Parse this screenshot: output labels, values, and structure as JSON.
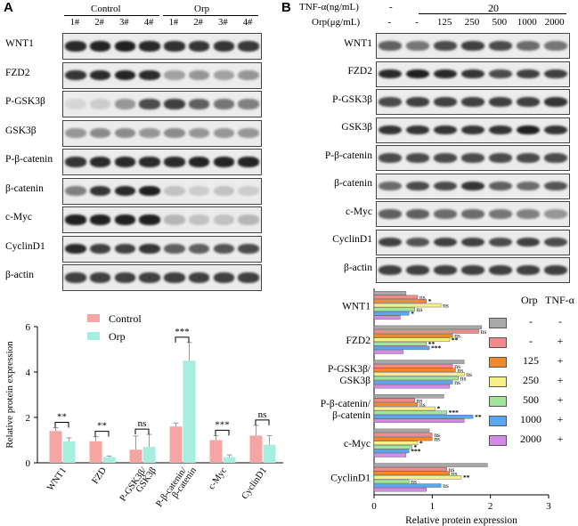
{
  "panel_a": {
    "letter": "A",
    "group_labels": [
      "Control",
      "Orp"
    ],
    "lanes": [
      "1#",
      "2#",
      "3#",
      "4#",
      "1#",
      "2#",
      "3#",
      "4#"
    ],
    "blots": [
      {
        "label": "WNT1",
        "intensity": [
          0.85,
          0.88,
          0.9,
          0.86,
          0.82,
          0.8,
          0.8,
          0.78
        ]
      },
      {
        "label": "FZD2",
        "intensity": [
          0.8,
          0.85,
          0.88,
          0.85,
          0.3,
          0.35,
          0.3,
          0.35
        ]
      },
      {
        "label": "P-GSK3β",
        "intensity": [
          0.05,
          0.1,
          0.35,
          0.7,
          0.75,
          0.6,
          0.5,
          0.45
        ]
      },
      {
        "label": "GSK3β",
        "intensity": [
          0.35,
          0.4,
          0.4,
          0.35,
          0.4,
          0.35,
          0.35,
          0.35
        ]
      },
      {
        "label": "P-β-catenin",
        "intensity": [
          0.8,
          0.85,
          0.85,
          0.85,
          0.85,
          0.88,
          0.88,
          0.88
        ]
      },
      {
        "label": "β-catenin",
        "intensity": [
          0.45,
          0.8,
          0.85,
          0.9,
          0.15,
          0.1,
          0.15,
          0.1
        ]
      },
      {
        "label": "c-Myc",
        "intensity": [
          0.9,
          0.9,
          0.9,
          0.9,
          0.2,
          0.15,
          0.15,
          0.2
        ]
      },
      {
        "label": "CyclinD1",
        "intensity": [
          0.85,
          0.75,
          0.75,
          0.8,
          0.6,
          0.6,
          0.65,
          0.7
        ]
      },
      {
        "label": "β-actin",
        "intensity": [
          0.75,
          0.75,
          0.75,
          0.75,
          0.75,
          0.75,
          0.75,
          0.75
        ]
      }
    ]
  },
  "panel_b": {
    "letter": "B",
    "tnf_label": "TNF-α(ng/mL)",
    "tnf_dash": "-",
    "tnf_value": "20",
    "orp_label": "Orp(μg/mL)",
    "orp_values": [
      "-",
      "-",
      "125",
      "250",
      "500",
      "1000",
      "2000"
    ],
    "blots": [
      {
        "label": "WNT1",
        "intensity": [
          0.6,
          0.5,
          0.7,
          0.75,
          0.7,
          0.55,
          0.5
        ]
      },
      {
        "label": "FZD2",
        "intensity": [
          0.85,
          0.9,
          0.85,
          0.8,
          0.7,
          0.75,
          0.75
        ]
      },
      {
        "label": "P-GSK3β",
        "intensity": [
          0.7,
          0.75,
          0.75,
          0.75,
          0.75,
          0.75,
          0.8
        ]
      },
      {
        "label": "GSK3β",
        "intensity": [
          0.8,
          0.8,
          0.8,
          0.8,
          0.8,
          0.9,
          0.8
        ]
      },
      {
        "label": "P-β-catenin",
        "intensity": [
          0.7,
          0.7,
          0.7,
          0.7,
          0.7,
          0.7,
          0.7
        ]
      },
      {
        "label": "β-catenin",
        "intensity": [
          0.55,
          0.7,
          0.7,
          0.8,
          0.6,
          0.55,
          0.65
        ]
      },
      {
        "label": "c-Myc",
        "intensity": [
          0.6,
          0.6,
          0.55,
          0.55,
          0.5,
          0.45,
          0.35
        ]
      },
      {
        "label": "CyclinD1",
        "intensity": [
          0.75,
          0.65,
          0.75,
          0.75,
          0.7,
          0.75,
          0.7
        ]
      },
      {
        "label": "β-actin",
        "intensity": [
          0.75,
          0.75,
          0.75,
          0.75,
          0.75,
          0.75,
          0.75
        ]
      }
    ]
  },
  "legend_b": {
    "headers": [
      "Orp",
      "TNF-α"
    ],
    "rows": [
      {
        "orp": "-",
        "tnf": "-",
        "color": "#a8a8a8"
      },
      {
        "orp": "-",
        "tnf": "+",
        "color": "#f38a8a"
      },
      {
        "orp": "125",
        "tnf": "+",
        "color": "#f08a2c"
      },
      {
        "orp": "250",
        "tnf": "+",
        "color": "#f6f08a"
      },
      {
        "orp": "500",
        "tnf": "+",
        "color": "#9fe69a"
      },
      {
        "orp": "1000",
        "tnf": "+",
        "color": "#5aa6f0"
      },
      {
        "orp": "2000",
        "tnf": "+",
        "color": "#d58ae6"
      }
    ]
  },
  "chart_data": [
    {
      "type": "bar",
      "panel": "A",
      "categories": [
        "WNT1",
        "FZD",
        "P-GSK3β/GSK3β",
        "P-β-catenin/β-catenin",
        "c-Myc",
        "CyclinD1"
      ],
      "category_lines": [
        [
          "WNT1"
        ],
        [
          "FZD"
        ],
        [
          "P-GSK3β/",
          "GSK3β"
        ],
        [
          "P-β-catenin/",
          "β-catenin"
        ],
        [
          "c-Myc"
        ],
        [
          "CyclinD1"
        ]
      ],
      "series": [
        {
          "name": "Control",
          "color": "#f6a5a5",
          "values": [
            1.4,
            0.95,
            0.58,
            1.6,
            1.0,
            1.2
          ],
          "errors": [
            0.15,
            0.2,
            0.6,
            0.15,
            0.2,
            0.45
          ]
        },
        {
          "name": "Orp",
          "color": "#a6eedd",
          "values": [
            0.95,
            0.25,
            0.7,
            4.5,
            0.25,
            0.8
          ],
          "errors": [
            0.15,
            0.05,
            0.55,
            0.8,
            0.1,
            0.4
          ]
        }
      ],
      "significance": [
        "**",
        "**",
        "ns",
        "***",
        "***",
        "ns"
      ],
      "ylabel": "Relative protein expression",
      "ylim": [
        0,
        6
      ],
      "yticks": [
        0,
        2,
        4,
        6
      ]
    },
    {
      "type": "bar",
      "orientation": "horizontal",
      "panel": "B",
      "categories": [
        "WNT1",
        "FZD2",
        "P-GSK3β/GSK3β",
        "P-β-catenin/β-catenin",
        "c-Myc",
        "CyclinD1"
      ],
      "category_lines": [
        [
          "WNT1"
        ],
        [
          "FZD2"
        ],
        [
          "P-GSK3β/",
          "GSK3β"
        ],
        [
          "P-β-catenin/",
          "β-catenin"
        ],
        [
          "c-Myc"
        ],
        [
          "CyclinD1"
        ]
      ],
      "series": [
        {
          "name": "Orp - / TNF-α -",
          "color": "#a8a8a8",
          "values": [
            0.55,
            1.85,
            1.55,
            1.2,
            0.95,
            1.95
          ]
        },
        {
          "name": "Orp - / TNF-α +",
          "color": "#f38a8a",
          "values": [
            0.75,
            1.8,
            1.35,
            0.7,
            1.0,
            1.25
          ]
        },
        {
          "name": "Orp 125 / TNF-α +",
          "color": "#f08a2c",
          "values": [
            0.9,
            1.35,
            1.4,
            0.75,
            1.0,
            1.3
          ]
        },
        {
          "name": "Orp 250 / TNF-α +",
          "color": "#f6f08a",
          "values": [
            1.15,
            1.3,
            1.55,
            1.05,
            0.75,
            1.5
          ]
        },
        {
          "name": "Orp 500 / TNF-α +",
          "color": "#9fe69a",
          "values": [
            0.7,
            0.9,
            1.45,
            1.25,
            0.65,
            0.6
          ]
        },
        {
          "name": "Orp 1000 / TNF-α +",
          "color": "#5aa6f0",
          "values": [
            0.6,
            0.95,
            1.35,
            1.7,
            0.6,
            1.15
          ]
        },
        {
          "name": "Orp 2000 / TNF-α +",
          "color": "#d58ae6",
          "values": [
            0.45,
            0.5,
            1.3,
            1.55,
            0.55,
            0.9
          ]
        }
      ],
      "significance": [
        [
          "",
          "ns",
          "*",
          "ns",
          "ns",
          "*"
        ],
        [
          "",
          "ns",
          "ns",
          "**",
          "**",
          "***"
        ],
        [
          "",
          "ns",
          "ns",
          "ns",
          "ns",
          "ns"
        ],
        [
          "",
          "ns",
          "ns",
          "*",
          "***",
          "**"
        ],
        [
          "",
          "ns",
          "ns",
          "*",
          "*",
          "***"
        ],
        [
          "",
          "ns",
          "ns",
          "**",
          "ns",
          "ns"
        ]
      ],
      "xlabel": "Relative protein expression",
      "xlim": [
        0,
        3
      ],
      "xticks": [
        0,
        1,
        2,
        3
      ]
    }
  ]
}
